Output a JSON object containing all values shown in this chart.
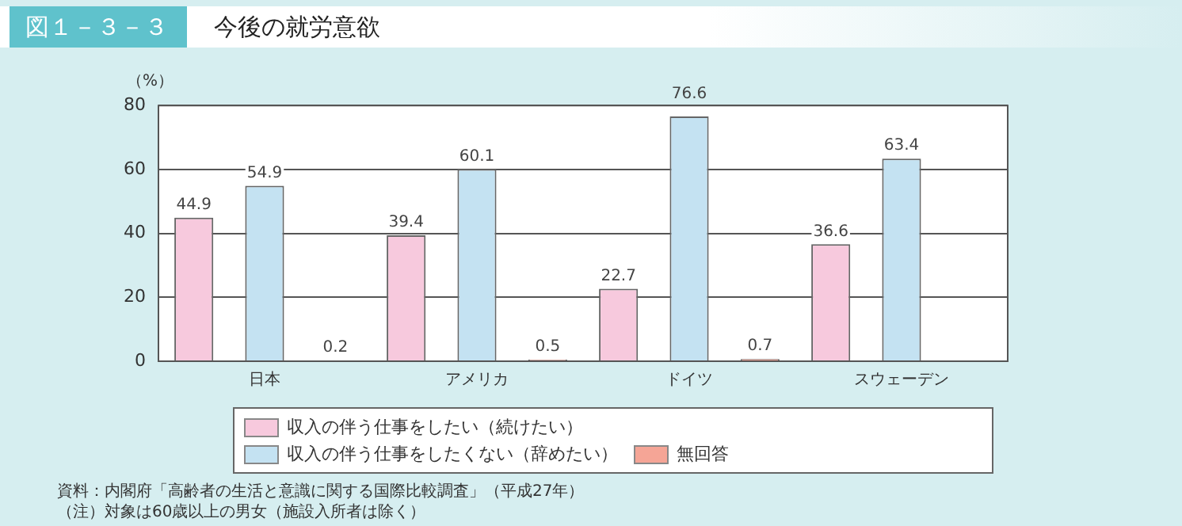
{
  "chart_data": {
    "type": "bar",
    "title": "今後の就労意欲",
    "ylabel": "（%）",
    "categories": [
      "日本",
      "アメリカ",
      "ドイツ",
      "スウェーデン"
    ],
    "series": [
      {
        "name": "収入の伴う仕事をしたい（続けたい）",
        "color": "#f7c9dd",
        "values": [
          44.9,
          39.4,
          22.7,
          36.6
        ]
      },
      {
        "name": "収入の伴う仕事をしたくない（辞めたい）",
        "color": "#c4e2f2",
        "values": [
          54.9,
          60.1,
          76.6,
          63.4
        ]
      },
      {
        "name": "無回答",
        "color": "#f5a596",
        "values": [
          0.2,
          0.5,
          0.7,
          null
        ]
      }
    ],
    "ylim": [
      0,
      80
    ],
    "yticks": [
      0,
      20,
      40,
      60,
      80
    ],
    "grid": "y",
    "legend": "bottom",
    "data_labels": true,
    "annotations": [
      "図１－３－３",
      "資料：内閣府「高齢者の生活と意識に関する国際比較調査」（平成27年）",
      "（注）対象は60歳以上の男女（施設入所者は除く）"
    ]
  }
}
